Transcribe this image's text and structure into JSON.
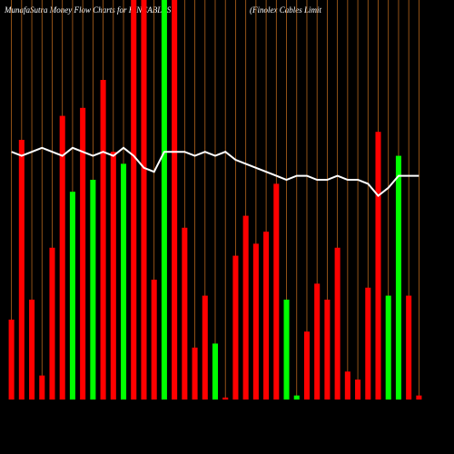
{
  "chart_data": {
    "type": "bar",
    "title": "MunafaSutra  Money Flow  Charts for FINCABLES",
    "subtitle": "(Finolex Cables Limit",
    "series": [
      {
        "values": [
          20,
          65,
          25,
          6,
          38,
          71,
          52,
          73,
          55,
          80,
          62,
          59,
          100,
          100,
          30,
          100,
          100,
          43,
          13,
          26,
          14,
          0.5,
          36,
          46,
          39,
          42,
          54,
          25,
          1,
          17,
          29,
          25,
          38,
          7,
          5,
          28,
          67,
          26,
          61,
          26,
          1
        ],
        "colors": [
          "#ff0000",
          "#ff0000",
          "#ff0000",
          "#ff0000",
          "#ff0000",
          "#ff0000",
          "#00ff00",
          "#ff0000",
          "#00ff00",
          "#ff0000",
          "#ff0000",
          "#00ff00",
          "#ff0000",
          "#ff0000",
          "#ff0000",
          "#00ff00",
          "#ff0000",
          "#ff0000",
          "#ff0000",
          "#ff0000",
          "#00ff00",
          "#ff0000",
          "#ff0000",
          "#ff0000",
          "#ff0000",
          "#ff0000",
          "#ff0000",
          "#00ff00",
          "#00ff00",
          "#ff0000",
          "#ff0000",
          "#ff0000",
          "#ff0000",
          "#ff0000",
          "#ff0000",
          "#ff0000",
          "#ff0000",
          "#00ff00",
          "#00ff00",
          "#ff0000",
          "#ff0000"
        ]
      },
      {
        "type": "line",
        "color": "#ffffff",
        "values": [
          62,
          61,
          62,
          63,
          62,
          61,
          63,
          62,
          61,
          62,
          61,
          63,
          61,
          58,
          57,
          62,
          62,
          62,
          61,
          62,
          61,
          62,
          60,
          59,
          58,
          57,
          56,
          55,
          56,
          56,
          55,
          55,
          56,
          55,
          55,
          54,
          51,
          53,
          56,
          56,
          56
        ]
      }
    ],
    "ylim": [
      0,
      100
    ],
    "grid": true,
    "grid_color": "#b5651d"
  }
}
